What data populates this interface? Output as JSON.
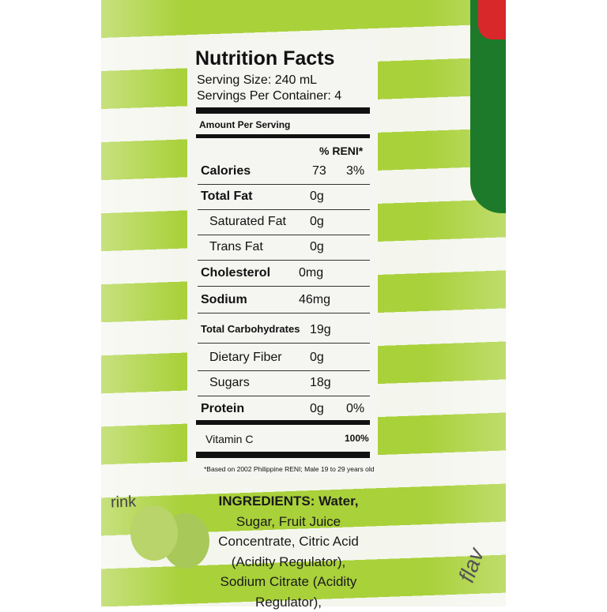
{
  "nutrition": {
    "title": "Nutrition Facts",
    "serving_size": "Serving Size: 240 mL",
    "servings_per_container": "Servings Per Container: 4",
    "amount_per_serving": "Amount Per Serving",
    "reni_header": "% RENI*",
    "rows": [
      {
        "label": "Calories",
        "amount": "73",
        "pct": "3%"
      },
      {
        "label": "Total Fat",
        "amount": "0g",
        "pct": ""
      },
      {
        "label": "Saturated Fat",
        "amount": "0g",
        "pct": ""
      },
      {
        "label": "Trans Fat",
        "amount": "0g",
        "pct": ""
      },
      {
        "label": "Cholesterol",
        "amount": "0mg",
        "pct": ""
      },
      {
        "label": "Sodium",
        "amount": "46mg",
        "pct": ""
      },
      {
        "label": "Total Carbohydrates",
        "amount": "19g",
        "pct": ""
      },
      {
        "label": "Dietary Fiber",
        "amount": "0g",
        "pct": ""
      },
      {
        "label": "Sugars",
        "amount": "18g",
        "pct": ""
      },
      {
        "label": "Protein",
        "amount": "0g",
        "pct": "0%"
      }
    ],
    "vitamin_c": {
      "label": "Vitamin C",
      "pct": "100%"
    },
    "footnote": "*Based on 2002 Philippine RENI; Male 19 to 29 years old"
  },
  "ingredients": {
    "lines": [
      "INGREDIENTS: Water,",
      "Sugar, Fruit Juice",
      "Concentrate, Citric Acid",
      "(Acidity Regulator),",
      "Sodium Citrate (Acidity",
      "Regulator),"
    ]
  },
  "side_text": {
    "left": "rink",
    "right": "flav"
  },
  "colors": {
    "stripe_green": "#a9d13a",
    "badge_green": "#1d7a2a",
    "badge_red": "#d8282a"
  }
}
